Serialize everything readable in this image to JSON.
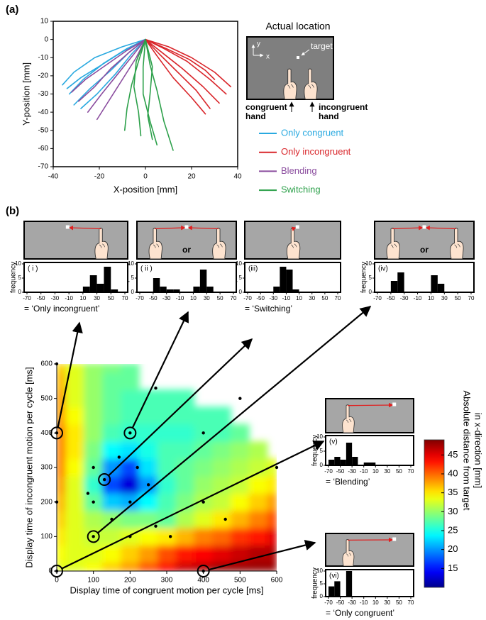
{
  "panel_labels": [
    "(a)",
    "(b)"
  ],
  "inset": {
    "title": "Actual location",
    "target": "target",
    "y": "y",
    "x": "x",
    "congruent": [
      "congruent",
      "hand"
    ],
    "incongruent": [
      "incongruent",
      "hand"
    ]
  },
  "chart_data": [
    {
      "type": "trajectory",
      "xlabel": "X-position [mm]",
      "ylabel": "Y-position [mm]",
      "xlim": [
        -40,
        40
      ],
      "xticks": [
        -40,
        -20,
        0,
        20,
        40
      ],
      "ylim": [
        -70,
        10
      ],
      "yticks": [
        10,
        0,
        -10,
        -20,
        -30,
        -40,
        -50,
        -60,
        -70
      ],
      "series": [
        {
          "name": "Only congruent",
          "color": "#29a9e0",
          "trajectories": [
            {
              "x": [
                0,
                -8,
                -18,
                -27,
                -33
              ],
              "values": [
                0,
                -5,
                -13,
                -22,
                -30
              ]
            },
            {
              "x": [
                0,
                -10,
                -22,
                -31,
                -36
              ],
              "values": [
                0,
                -4,
                -10,
                -18,
                -25
              ]
            },
            {
              "x": [
                0,
                -7,
                -15,
                -24,
                -31
              ],
              "values": [
                0,
                -7,
                -17,
                -27,
                -36
              ]
            },
            {
              "x": [
                0,
                -9,
                -19,
                -28,
                -34
              ],
              "values": [
                0,
                -6,
                -14,
                -21,
                -27
              ]
            },
            {
              "x": [
                0,
                -6,
                -13,
                -21,
                -28
              ],
              "values": [
                0,
                -8,
                -19,
                -30,
                -38
              ]
            }
          ]
        },
        {
          "name": "Only incongruent",
          "color": "#d9262b",
          "trajectories": [
            {
              "x": [
                0,
                8,
                18,
                28,
                35
              ],
              "values": [
                0,
                -5,
                -12,
                -22,
                -30
              ]
            },
            {
              "x": [
                0,
                6,
                14,
                22,
                28
              ],
              "values": [
                0,
                -8,
                -18,
                -28,
                -38
              ]
            },
            {
              "x": [
                0,
                10,
                20,
                30,
                37
              ],
              "values": [
                0,
                -4,
                -10,
                -18,
                -26
              ]
            },
            {
              "x": [
                0,
                7,
                16,
                25,
                32
              ],
              "values": [
                0,
                -7,
                -16,
                -26,
                -35
              ]
            },
            {
              "x": [
                0,
                5,
                12,
                20,
                26
              ],
              "values": [
                0,
                -9,
                -21,
                -32,
                -41
              ]
            },
            {
              "x": [
                0,
                9,
                19,
                26,
                30
              ],
              "values": [
                0,
                -5,
                -11,
                -17,
                -22
              ]
            }
          ]
        },
        {
          "name": "Blending",
          "color": "#8a4c9e",
          "trajectories": [
            {
              "x": [
                0,
                -5,
                -12,
                -19,
                -25
              ],
              "values": [
                0,
                -8,
                -19,
                -30,
                -40
              ]
            },
            {
              "x": [
                0,
                -7,
                -15,
                -22,
                -29
              ],
              "values": [
                0,
                -7,
                -16,
                -26,
                -34
              ]
            },
            {
              "x": [
                0,
                -4,
                -10,
                -16,
                -21
              ],
              "values": [
                0,
                -10,
                -22,
                -34,
                -44
              ]
            },
            {
              "x": [
                0,
                -8,
                -17,
                -26,
                -32
              ],
              "values": [
                0,
                -6,
                -14,
                -22,
                -29
              ]
            }
          ]
        },
        {
          "name": "Switching",
          "color": "#2ca04a",
          "trajectories": [
            {
              "x": [
                0,
                -3,
                -6,
                -8,
                -9
              ],
              "values": [
                0,
                -12,
                -25,
                -38,
                -50
              ]
            },
            {
              "x": [
                0,
                -1,
                -1,
                2,
                5
              ],
              "values": [
                0,
                -15,
                -30,
                -45,
                -58
              ]
            },
            {
              "x": [
                0,
                2,
                5,
                8,
                12
              ],
              "values": [
                0,
                -14,
                -28,
                -45,
                -61
              ]
            },
            {
              "x": [
                0,
                -4,
                -5,
                -3,
                -2
              ],
              "values": [
                0,
                -12,
                -26,
                -40,
                -53
              ]
            },
            {
              "x": [
                0,
                3,
                2,
                1,
                3
              ],
              "values": [
                0,
                -15,
                -30,
                -42,
                -55
              ]
            }
          ]
        }
      ]
    },
    {
      "type": "histogram",
      "label": "( i )",
      "ylabel": "frequency",
      "caption": "= ‘Only incongruent’",
      "bins": [
        -70,
        -60,
        -50,
        -40,
        -30,
        -20,
        -10,
        0,
        10,
        20,
        30,
        40,
        50,
        60,
        70
      ],
      "values": [
        0,
        0,
        0,
        0,
        0,
        0,
        0,
        0,
        2,
        6,
        3,
        9,
        1,
        0
      ],
      "xlim": [
        -70,
        70
      ],
      "xticks": [
        -70,
        -50,
        -30,
        -10,
        10,
        30,
        50,
        70
      ],
      "ylim": [
        0,
        10
      ],
      "yticks": [
        0,
        5,
        10
      ]
    },
    {
      "type": "histogram",
      "label": "( ii )",
      "ylabel": "frequency",
      "icon_text": "or",
      "bins": [
        -70,
        -60,
        -50,
        -40,
        -30,
        -20,
        -10,
        0,
        10,
        20,
        30,
        40,
        50,
        60,
        70
      ],
      "values": [
        0,
        0,
        5,
        2,
        1,
        1,
        0,
        0,
        2,
        8,
        2,
        0,
        0,
        0
      ],
      "xlim": [
        -70,
        70
      ],
      "xticks": [
        -70,
        -50,
        -30,
        -10,
        10,
        30,
        50,
        70
      ],
      "ylim": [
        0,
        10
      ],
      "yticks": [
        0,
        5,
        10
      ]
    },
    {
      "type": "histogram",
      "label": "(iii)",
      "ylabel": "frequency",
      "caption": "= ‘Switching’",
      "bins": [
        -70,
        -60,
        -50,
        -40,
        -30,
        -20,
        -10,
        0,
        10,
        20,
        30,
        40,
        50,
        60,
        70
      ],
      "values": [
        0,
        0,
        0,
        0,
        2,
        9,
        8,
        1,
        0,
        0,
        0,
        0,
        0,
        0
      ],
      "xlim": [
        -70,
        70
      ],
      "xticks": [
        -70,
        -50,
        -30,
        -10,
        10,
        30,
        50,
        70
      ],
      "ylim": [
        0,
        10
      ],
      "yticks": [
        0,
        5,
        10
      ]
    },
    {
      "type": "histogram",
      "label": "(iv)",
      "ylabel": "frequency",
      "icon_text": "or",
      "bins": [
        -70,
        -60,
        -50,
        -40,
        -30,
        -20,
        -10,
        0,
        10,
        20,
        30,
        40,
        50,
        60,
        70
      ],
      "values": [
        0,
        0,
        4,
        7,
        0,
        0,
        0,
        0,
        6,
        3,
        0,
        0,
        0,
        0
      ],
      "xlim": [
        -70,
        70
      ],
      "xticks": [
        -70,
        -50,
        -30,
        -10,
        10,
        30,
        50,
        70
      ],
      "ylim": [
        0,
        10
      ],
      "yticks": [
        0,
        5,
        10
      ]
    },
    {
      "type": "histogram",
      "label": "(v)",
      "ylabel": "frequency",
      "caption": "= ‘Blending’",
      "bins": [
        -70,
        -60,
        -50,
        -40,
        -30,
        -20,
        -10,
        0,
        10,
        20,
        30,
        40,
        50,
        60,
        70
      ],
      "values": [
        2,
        3,
        2,
        8,
        3,
        0,
        1,
        1,
        0,
        0,
        0,
        0,
        0,
        0
      ],
      "xlim": [
        -70,
        70
      ],
      "xticks": [
        -70,
        -50,
        -30,
        -10,
        10,
        30,
        50,
        70
      ],
      "ylim": [
        0,
        10
      ],
      "yticks": [
        0,
        5,
        10
      ]
    },
    {
      "type": "histogram",
      "label": "(vi)",
      "ylabel": "frequency",
      "caption": "= ‘Only congruent’",
      "bins": [
        -70,
        -60,
        -50,
        -40,
        -30,
        -20,
        -10,
        0,
        10,
        20,
        30,
        40,
        50,
        60,
        70
      ],
      "values": [
        4,
        6,
        0,
        10,
        0,
        0,
        0,
        0,
        0,
        0,
        0,
        0,
        0,
        0
      ],
      "xlim": [
        -70,
        70
      ],
      "xticks": [
        -70,
        -50,
        -30,
        -10,
        10,
        30,
        50,
        70
      ],
      "ylim": [
        0,
        10
      ],
      "yticks": [
        0,
        5,
        10
      ]
    },
    {
      "type": "heatmap",
      "xlabel": "Display time of congruent motion per cycle [ms]",
      "ylabel": "Display time of incongruent motion per cycle [ms]",
      "colorbar_label": [
        "Absolute distance from target",
        "in x-direction [mm]"
      ],
      "xlim": [
        0,
        600
      ],
      "xticks": [
        0,
        100,
        200,
        300,
        400,
        500,
        600
      ],
      "ylim": [
        0,
        600
      ],
      "yticks": [
        0,
        100,
        200,
        300,
        400,
        500,
        600
      ],
      "clim": [
        10,
        49
      ],
      "cticks": [
        15,
        20,
        25,
        30,
        35,
        40,
        45
      ],
      "x": [
        0,
        50,
        100,
        150,
        200,
        250,
        300,
        350,
        400,
        450,
        500,
        550,
        600
      ],
      "y": [
        0,
        50,
        100,
        150,
        200,
        250,
        300,
        350,
        400,
        450,
        500,
        550,
        600
      ],
      "z": [
        [
          33,
          33,
          34,
          36,
          38,
          41,
          44,
          46,
          47,
          48,
          48,
          48,
          48
        ],
        [
          34,
          33,
          33,
          34,
          36,
          38,
          41,
          43,
          44,
          45,
          46,
          47,
          47
        ],
        [
          35,
          33,
          32,
          32,
          33,
          34,
          35,
          37,
          39,
          40,
          42,
          43,
          45
        ],
        [
          36,
          33,
          31,
          30,
          29,
          29,
          28,
          31,
          33,
          35,
          37,
          39,
          41
        ],
        [
          37,
          33,
          28,
          22,
          21,
          24,
          27,
          29,
          31,
          32,
          34,
          36,
          38
        ],
        [
          38,
          33,
          26,
          17,
          13,
          20,
          26,
          28,
          30,
          31,
          32,
          34,
          35
        ],
        [
          39,
          34,
          28,
          20,
          17,
          23,
          27,
          28,
          29,
          30,
          31,
          32,
          33
        ],
        [
          39,
          35,
          29,
          24,
          23,
          25,
          27,
          27,
          28,
          29,
          30,
          31,
          null
        ],
        [
          39,
          35,
          30,
          27,
          26,
          26,
          26,
          26,
          27,
          27,
          28,
          null,
          null
        ],
        [
          38,
          34,
          30,
          28,
          27,
          27,
          27,
          27,
          27,
          27,
          null,
          null,
          null
        ],
        [
          38,
          33,
          30,
          28,
          27,
          27,
          27,
          27,
          null,
          null,
          null,
          null,
          null
        ],
        [
          37,
          33,
          30,
          28,
          28,
          null,
          null,
          null,
          null,
          null,
          null,
          null,
          null
        ],
        [
          36,
          33,
          30,
          29,
          28,
          null,
          null,
          null,
          null,
          null,
          null,
          null,
          null
        ]
      ],
      "points": [
        [
          0,
          600
        ],
        [
          270,
          530
        ],
        [
          500,
          500
        ],
        [
          0,
          400
        ],
        [
          200,
          400
        ],
        [
          400,
          400
        ],
        [
          100,
          300
        ],
        [
          130,
          265
        ],
        [
          220,
          300
        ],
        [
          600,
          300
        ],
        [
          85,
          225
        ],
        [
          170,
          330
        ],
        [
          0,
          200
        ],
        [
          100,
          200
        ],
        [
          200,
          200
        ],
        [
          250,
          250
        ],
        [
          400,
          200
        ],
        [
          150,
          150
        ],
        [
          460,
          150
        ],
        [
          100,
          100
        ],
        [
          270,
          130
        ],
        [
          0,
          0
        ],
        [
          200,
          100
        ],
        [
          310,
          100
        ],
        [
          400,
          0
        ]
      ],
      "circled": [
        [
          0,
          400
        ],
        [
          200,
          400
        ],
        [
          130,
          265
        ],
        [
          100,
          100
        ],
        [
          0,
          0
        ],
        [
          400,
          0
        ]
      ]
    }
  ]
}
